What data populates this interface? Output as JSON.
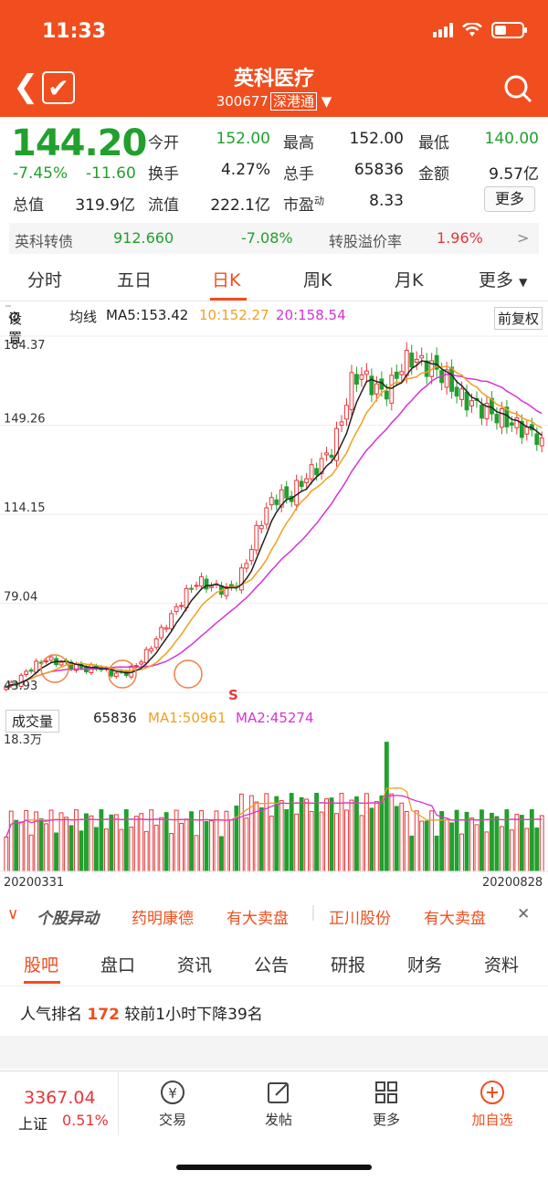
{
  "status": {
    "time": "11:33"
  },
  "nav": {
    "title": "英科医疗",
    "code": "300677",
    "market_tag": "深港通"
  },
  "quote": {
    "price": "144.20",
    "pct": "-7.45%",
    "change": "-11.60",
    "open_label": "今开",
    "open": "152.00",
    "high_label": "最高",
    "high": "152.00",
    "low_label": "最低",
    "low": "140.00",
    "turnover_label": "换手",
    "turnover": "4.27%",
    "hands_label": "总手",
    "hands": "65836",
    "amount_label": "金额",
    "amount": "9.57亿",
    "mktcap_label": "总值",
    "mktcap": "319.9亿",
    "float_label": "流值",
    "float": "222.1亿",
    "pe_label": "市盈",
    "pe_sup": "动",
    "pe": "8.33",
    "more_label": "更多"
  },
  "bond": {
    "name": "英科转债",
    "price": "912.660",
    "pct": "-7.08%",
    "premium_label": "转股溢价率",
    "premium": "1.96%",
    "arrow": ">"
  },
  "period_tabs": [
    "分时",
    "五日",
    "日K",
    "周K",
    "月K",
    "更多"
  ],
  "ma": {
    "settings": "设置",
    "label": "均线",
    "ma5": "MA5:153.42",
    "ma10": "10:152.27",
    "ma20": "20:158.54",
    "adjust": "前复权"
  },
  "chart_axis": [
    "184.37",
    "149.26",
    "114.15",
    "79.04",
    "43.93"
  ],
  "chart_marker": "S",
  "volume": {
    "button": "成交量",
    "value": "65836",
    "ma1": "MA1:50961",
    "ma2": "MA2:45274",
    "max_label": "18.3万",
    "start_date": "20200331",
    "end_date": "20200828"
  },
  "colors": {
    "brand": "#f04e1e",
    "up": "#e8363a",
    "down": "#21a02d",
    "ma5": "#222222",
    "ma10": "#f0a020",
    "ma20": "#d633d6"
  },
  "news": {
    "label": "个股异动",
    "item1": "药明康德",
    "item1_tag": "有大卖盘",
    "item2": "正川股份",
    "item2_tag": "有大卖盘",
    "close": "✕"
  },
  "bottom_tabs": [
    "股吧",
    "盘口",
    "资讯",
    "公告",
    "研报",
    "财务",
    "资料"
  ],
  "popularity": {
    "prefix": "人气排名",
    "rank": "172",
    "suffix": "较前1小时下降39名"
  },
  "bottombar": {
    "index_value": "3367.04",
    "index_name": "上证",
    "index_pct": "0.51%",
    "trade": "交易",
    "post": "发帖",
    "more": "更多",
    "add": "加自选"
  },
  "chart_data": {
    "type": "candlestick",
    "x": [
      "20200331",
      "20200828"
    ],
    "ylim": [
      43.93,
      184.37
    ],
    "yticks": [
      184.37,
      149.26,
      114.15,
      79.04,
      43.93
    ],
    "close_trend": [
      46,
      48,
      52,
      55,
      57,
      56,
      55,
      54,
      53,
      54,
      52,
      51,
      52,
      55,
      60,
      66,
      72,
      78,
      84,
      88,
      86,
      85,
      84,
      88,
      98,
      110,
      118,
      122,
      120,
      126,
      130,
      134,
      138,
      148,
      165,
      170,
      166,
      162,
      164,
      172,
      176,
      174,
      172,
      170,
      165,
      160,
      158,
      156,
      154,
      152,
      150,
      148,
      146,
      144.2
    ],
    "volume_max": "18.3万"
  }
}
